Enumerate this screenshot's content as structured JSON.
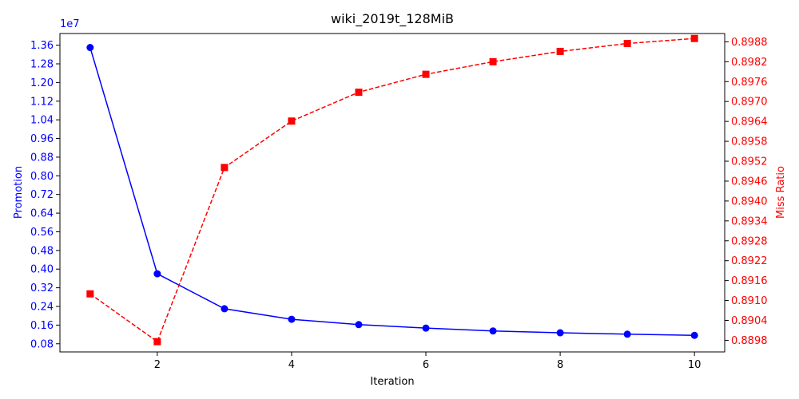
{
  "chart_data": {
    "type": "line",
    "title": "wiki_2019t_128MiB",
    "xlabel": "Iteration",
    "x": [
      1,
      2,
      3,
      4,
      5,
      6,
      7,
      8,
      9,
      10
    ],
    "xlim": [
      0.55,
      10.45
    ],
    "xticks": [
      2,
      4,
      6,
      8,
      10
    ],
    "xtick_labels": [
      "2",
      "4",
      "6",
      "8",
      "10"
    ],
    "left_axis": {
      "label": "Promotion",
      "color": "#0000ff",
      "multiplier_label": "1e7",
      "ylim": [
        0.045,
        1.41
      ],
      "ticks": [
        0.08,
        0.16,
        0.24,
        0.32,
        0.4,
        0.48,
        0.56,
        0.64,
        0.72,
        0.8,
        0.88,
        0.96,
        1.04,
        1.12,
        1.2,
        1.28,
        1.36
      ],
      "tick_labels": [
        "0.08",
        "0.16",
        "0.24",
        "0.32",
        "0.40",
        "0.48",
        "0.56",
        "0.64",
        "0.72",
        "0.80",
        "0.88",
        "0.96",
        "1.04",
        "1.12",
        "1.20",
        "1.28",
        "1.36"
      ]
    },
    "right_axis": {
      "label": "Miss Ratio",
      "color": "#ff0000",
      "ylim": [
        0.88945,
        0.89905
      ],
      "ticks": [
        0.8898,
        0.8904,
        0.891,
        0.8916,
        0.8922,
        0.8928,
        0.8934,
        0.894,
        0.8946,
        0.8952,
        0.8958,
        0.8964,
        0.897,
        0.8976,
        0.8982,
        0.8988
      ],
      "tick_labels": [
        "0.8898",
        "0.8904",
        "0.8910",
        "0.8916",
        "0.8922",
        "0.8928",
        "0.8934",
        "0.8940",
        "0.8946",
        "0.8952",
        "0.8958",
        "0.8964",
        "0.8970",
        "0.8976",
        "0.8982",
        "0.8988"
      ]
    },
    "series": [
      {
        "axis": "left",
        "color": "#0000ff",
        "line_style": "solid",
        "marker": "circle",
        "values": [
          1.35,
          0.38,
          0.23,
          0.185,
          0.162,
          0.147,
          0.135,
          0.127,
          0.121,
          0.116
        ]
      },
      {
        "axis": "right",
        "color": "#ff0000",
        "line_style": "dashed",
        "marker": "square",
        "values": [
          0.8912,
          0.88976,
          0.89501,
          0.89641,
          0.89728,
          0.89782,
          0.8982,
          0.89851,
          0.89875,
          0.8989
        ]
      }
    ],
    "legend": false,
    "grid": false
  }
}
